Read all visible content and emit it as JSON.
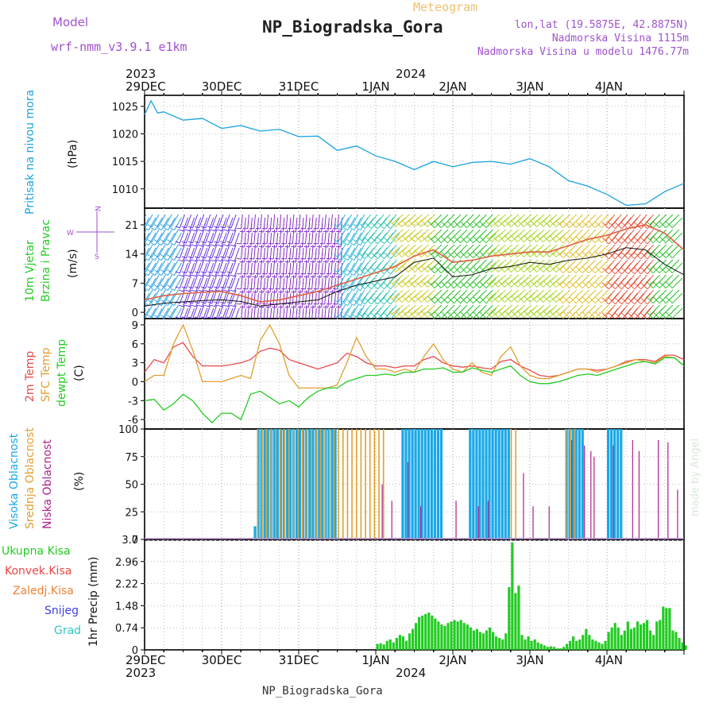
{
  "header": {
    "model_label": "Model",
    "model_name": "wrf-nmm_v3.9.1 e1km",
    "title": "NP_Biogradska_Gora",
    "meteogram_label": "Meteogram",
    "coords": "lon,lat (19.5875E, 42.8875N)",
    "elevation": "Nadmorska Visina 1115m",
    "model_elevation": "Nadmorska Visina u modelu 1476.77m",
    "footer_station": "NP_Biogradska_Gora",
    "watermark": "made by Angel"
  },
  "time_axis": {
    "top_year_left": "2023",
    "top_year_mid": "2024",
    "bottom_year_left": "2023",
    "bottom_year_mid": "2024",
    "ticks": [
      "29DEC",
      "30DEC",
      "31DEC",
      "1JAN",
      "2JAN",
      "3JAN",
      "4JAN"
    ]
  },
  "colors": {
    "pressure": "#1aa3e0",
    "t2m": "#e84a4a",
    "tsfc": "#e0a030",
    "dewpt": "#22cc22",
    "cloud_high": "#18a8e8",
    "cloud_mid": "#e0a030",
    "cloud_low": "#b0208a",
    "precip_total": "#22cc22",
    "precip_conv": "#ee4444",
    "precip_frz": "#f08030",
    "precip_snow": "#4040e0",
    "precip_grad": "#30c8c8"
  },
  "chart_data": [
    {
      "type": "line",
      "panel": "pressure",
      "ylabel_main": "Pritisak na nivou mora",
      "unit": "(hPa)",
      "ylim": [
        1006.5,
        1027
      ],
      "yticks": [
        "1025",
        "1020",
        "1015",
        "1010"
      ],
      "ytick_values": [
        1025,
        1020,
        1015,
        1010
      ],
      "grid": true,
      "x_hours": [
        0,
        2,
        4,
        6,
        12,
        18,
        24,
        30,
        36,
        42,
        48,
        54,
        60,
        66,
        72,
        78,
        84,
        90,
        96,
        102,
        108,
        114,
        120,
        126,
        132,
        138,
        144,
        150,
        156,
        158,
        162,
        168
      ],
      "values": [
        1023.5,
        1026,
        1023.8,
        1024,
        1022.5,
        1022.8,
        1021,
        1021.5,
        1020.5,
        1020.8,
        1019.5,
        1019.6,
        1017,
        1017.8,
        1016,
        1015,
        1013.5,
        1015,
        1014,
        1014.8,
        1015,
        1014.5,
        1015.5,
        1014,
        1011.5,
        1010.5,
        1009,
        1007,
        1007.3,
        1008,
        1009.5,
        1011
      ]
    },
    {
      "type": "line",
      "panel": "wind",
      "ylabel_main": "10m Vjetar",
      "ylabel_sub": "Brzina i Pravac",
      "unit": "(m/s)",
      "compass": [
        "N",
        "E",
        "S",
        "W"
      ],
      "ylim": [
        -1.5,
        25
      ],
      "yticks": [
        "21",
        "14",
        "7",
        "0"
      ],
      "ytick_values": [
        21,
        14,
        7,
        0
      ],
      "grid": true,
      "series": [
        {
          "role": "speed",
          "x_hours": [
            0,
            6,
            12,
            18,
            24,
            30,
            36,
            42,
            48,
            54,
            60,
            66,
            72,
            78,
            84,
            90,
            96,
            102,
            108,
            114,
            120,
            126,
            132,
            138,
            144,
            150,
            156,
            162,
            168
          ],
          "values": [
            1.5,
            2.2,
            2.5,
            2.8,
            3,
            2.6,
            1.5,
            2,
            2.5,
            3,
            5,
            6.5,
            7.5,
            8.5,
            12,
            13,
            8.5,
            9,
            10.5,
            11,
            12,
            11.5,
            12.5,
            13,
            14,
            15.5,
            15,
            11.5,
            9
          ]
        },
        {
          "role": "gust",
          "x_hours": [
            0,
            6,
            12,
            18,
            24,
            30,
            36,
            42,
            48,
            54,
            60,
            66,
            72,
            78,
            84,
            90,
            96,
            102,
            108,
            114,
            120,
            126,
            132,
            138,
            144,
            150,
            156,
            162,
            168
          ],
          "values": [
            3,
            4,
            4.5,
            4.8,
            5,
            4,
            2.5,
            3,
            4,
            5,
            6.5,
            8,
            9.5,
            11,
            13.5,
            15,
            12,
            12.5,
            13.5,
            14,
            14.5,
            14.5,
            16,
            17.5,
            18.5,
            20,
            21,
            19,
            15
          ]
        }
      ],
      "barb_segments": [
        {
          "from_hour": 0,
          "to_hour": 12,
          "color": "#1a9ae0",
          "dir_deg": 210
        },
        {
          "from_hour": 12,
          "to_hour": 30,
          "color": "#5a20d8",
          "dir_deg": 200
        },
        {
          "from_hour": 30,
          "to_hour": 62,
          "color": "#7a18c0",
          "dir_deg": 185
        },
        {
          "from_hour": 62,
          "to_hour": 70,
          "color": "#1ab0d8",
          "dir_deg": 210
        },
        {
          "from_hour": 70,
          "to_hour": 80,
          "color": "#20c0b0",
          "dir_deg": 220
        },
        {
          "from_hour": 80,
          "to_hour": 92,
          "color": "#cccc20",
          "dir_deg": 230
        },
        {
          "from_hour": 92,
          "to_hour": 110,
          "color": "#22c022",
          "dir_deg": 225
        },
        {
          "from_hour": 110,
          "to_hour": 132,
          "color": "#a8d820",
          "dir_deg": 230
        },
        {
          "from_hour": 132,
          "to_hour": 146,
          "color": "#e0c020",
          "dir_deg": 225
        },
        {
          "from_hour": 146,
          "to_hour": 160,
          "color": "#e84a30",
          "dir_deg": 220
        },
        {
          "from_hour": 160,
          "to_hour": 168,
          "color": "#22c022",
          "dir_deg": 225
        }
      ]
    },
    {
      "type": "line",
      "panel": "temperature",
      "ylabel_1": "2m Temp",
      "ylabel_2": "SFC Temp",
      "ylabel_3": "dewpt Temp",
      "unit": "(C)",
      "ylim": [
        -7.5,
        10
      ],
      "yticks": [
        "9",
        "6",
        "3",
        "0",
        "-3",
        "-6"
      ],
      "ytick_values": [
        9,
        6,
        3,
        0,
        -3,
        -6
      ],
      "grid": true,
      "x_hours": [
        0,
        3,
        6,
        9,
        12,
        15,
        18,
        21,
        24,
        27,
        30,
        33,
        36,
        39,
        42,
        45,
        48,
        51,
        54,
        57,
        60,
        63,
        66,
        69,
        72,
        75,
        78,
        81,
        84,
        87,
        90,
        93,
        96,
        99,
        102,
        105,
        108,
        111,
        114,
        117,
        120,
        123,
        126,
        129,
        132,
        135,
        138,
        141,
        144,
        147,
        150,
        153,
        156,
        159,
        162,
        165,
        168
      ],
      "series": [
        {
          "name": "2m Temp",
          "values": [
            1.5,
            3.5,
            3,
            5.5,
            6.2,
            4,
            2.5,
            2.5,
            2.5,
            2.7,
            3,
            3.5,
            4.8,
            5.3,
            5,
            3.5,
            3,
            2.5,
            2,
            2.5,
            3,
            4.5,
            4,
            3,
            2.5,
            2.5,
            2.2,
            2.5,
            2.5,
            3.5,
            4,
            3,
            2.5,
            2.3,
            2.5,
            2.2,
            2,
            3.2,
            3.5,
            2.5,
            1.8,
            1,
            0.8,
            1,
            1.5,
            2,
            2,
            1.8,
            2,
            2.5,
            3.2,
            3.5,
            3.5,
            3.2,
            4.2,
            4.2,
            3.5
          ]
        },
        {
          "name": "SFC Temp",
          "values": [
            0,
            1,
            1,
            6,
            9,
            5,
            0,
            0,
            0,
            0.5,
            1,
            0.5,
            6.5,
            9,
            6,
            1,
            -1,
            -1,
            -1,
            -1,
            -0.5,
            3,
            7,
            4,
            2,
            2,
            1.5,
            2,
            1.5,
            4,
            6,
            3.5,
            2,
            1.5,
            3,
            1.5,
            1,
            4,
            5.5,
            2.5,
            1,
            0.5,
            0.5,
            1,
            1.5,
            2,
            2,
            1.5,
            2,
            2.5,
            3,
            3.5,
            3.2,
            3,
            4,
            3.8,
            2.5
          ]
        },
        {
          "name": "dewpt Temp",
          "values": [
            -3,
            -2.8,
            -4.5,
            -3.5,
            -2,
            -3,
            -5,
            -6.5,
            -5,
            -5,
            -6,
            -2,
            -1.5,
            -2.5,
            -3.5,
            -3,
            -4,
            -2.5,
            -1.5,
            -1,
            -1,
            0,
            0.5,
            1,
            1,
            1.2,
            1,
            1.5,
            1.5,
            2,
            2,
            2.2,
            1.5,
            1.5,
            2.2,
            1.8,
            1.5,
            2,
            2.5,
            1,
            0,
            -0.3,
            -0.3,
            0,
            0.5,
            1,
            1.2,
            1,
            1.5,
            2,
            2.5,
            3,
            3.2,
            2.8,
            3.8,
            3.8,
            2.5
          ]
        }
      ]
    },
    {
      "type": "bar",
      "panel": "clouds",
      "ylabel_1": "Visoka Oblacnost",
      "ylabel_2": "Srednja Oblacnost",
      "ylabel_3": "Niska Oblacnost",
      "unit": "(%)",
      "ylim": [
        0,
        100
      ],
      "yticks": [
        "100",
        "75",
        "50",
        "25",
        "0"
      ],
      "ytick_values": [
        100,
        75,
        50,
        25,
        0
      ],
      "grid": true,
      "series": [
        {
          "name": "Visoka Oblacnost",
          "segments": [
            {
              "from_hour": 34,
              "to_hour": 35,
              "value": 12
            },
            {
              "from_hour": 35,
              "to_hour": 60,
              "value": 100
            },
            {
              "from_hour": 80,
              "to_hour": 93,
              "value": 100
            },
            {
              "from_hour": 101,
              "to_hour": 114,
              "value": 100
            },
            {
              "from_hour": 131,
              "to_hour": 137,
              "value": 100
            },
            {
              "from_hour": 144,
              "to_hour": 149,
              "value": 100
            }
          ]
        },
        {
          "name": "Srednja Oblacnost",
          "segments": [
            {
              "from_hour": 35,
              "to_hour": 75,
              "value": 100
            },
            {
              "from_hour": 114,
              "to_hour": 116,
              "value": 100
            },
            {
              "from_hour": 131,
              "to_hour": 134,
              "value": 100
            }
          ]
        },
        {
          "name": "Niska Oblacnost",
          "spikes_hours": [
            74,
            77,
            82,
            86,
            97,
            104,
            107,
            118,
            121,
            126,
            133,
            137,
            139,
            140,
            146,
            152,
            154,
            160,
            163,
            166
          ],
          "spikes_values": [
            50,
            35,
            70,
            30,
            35,
            30,
            35,
            60,
            30,
            30,
            90,
            85,
            80,
            75,
            85,
            90,
            80,
            90,
            88,
            45
          ]
        }
      ]
    },
    {
      "type": "bar",
      "panel": "precipitation",
      "legend": [
        "Ukupna Kisa",
        "Konvek.Kisa",
        "Zaledj.Kisa",
        "Snijeg",
        "Grad"
      ],
      "ylabel": "1hr Precip",
      "unit": "(mm)",
      "ylim": [
        0,
        3.7
      ],
      "yticks": [
        "3.7",
        "2.96",
        "2.22",
        "1.48",
        "0.74",
        "0"
      ],
      "ytick_values": [
        3.7,
        2.96,
        2.22,
        1.48,
        0.74,
        0
      ],
      "grid": true,
      "x_hours_start": 72,
      "values": [
        0.2,
        0.22,
        0.18,
        0.3,
        0.35,
        0.25,
        0.4,
        0.5,
        0.45,
        0.3,
        0.55,
        0.7,
        0.9,
        1.1,
        1.15,
        1.2,
        1.25,
        1.15,
        1.05,
        0.95,
        0.85,
        0.8,
        0.9,
        0.95,
        1,
        0.95,
        1,
        0.9,
        0.85,
        0.75,
        0.65,
        0.7,
        0.6,
        0.55,
        0.65,
        0.75,
        0.6,
        0.45,
        0.4,
        0.35,
        0.55,
        2.1,
        3.6,
        1.9,
        2.15,
        0.5,
        0.35,
        0.45,
        0.3,
        0.35,
        0.25,
        0.2,
        0.15,
        0.1,
        0.12,
        0.1,
        0.05,
        0.05,
        0.1,
        0.2,
        0.3,
        0.45,
        0.3,
        0.35,
        0.5,
        0.7,
        0.5,
        0.35,
        0.3,
        0.25,
        0.2,
        0.3,
        0.6,
        0.75,
        0.9,
        0.75,
        0.5,
        0.65,
        0.95,
        0.7,
        0.75,
        0.95,
        0.85,
        0.9,
        1.0,
        0.65,
        0.5,
        0.95,
        1.0,
        1.45,
        1.4,
        1.4,
        0.65,
        0.6,
        0.4,
        0.25,
        0.15
      ]
    }
  ]
}
